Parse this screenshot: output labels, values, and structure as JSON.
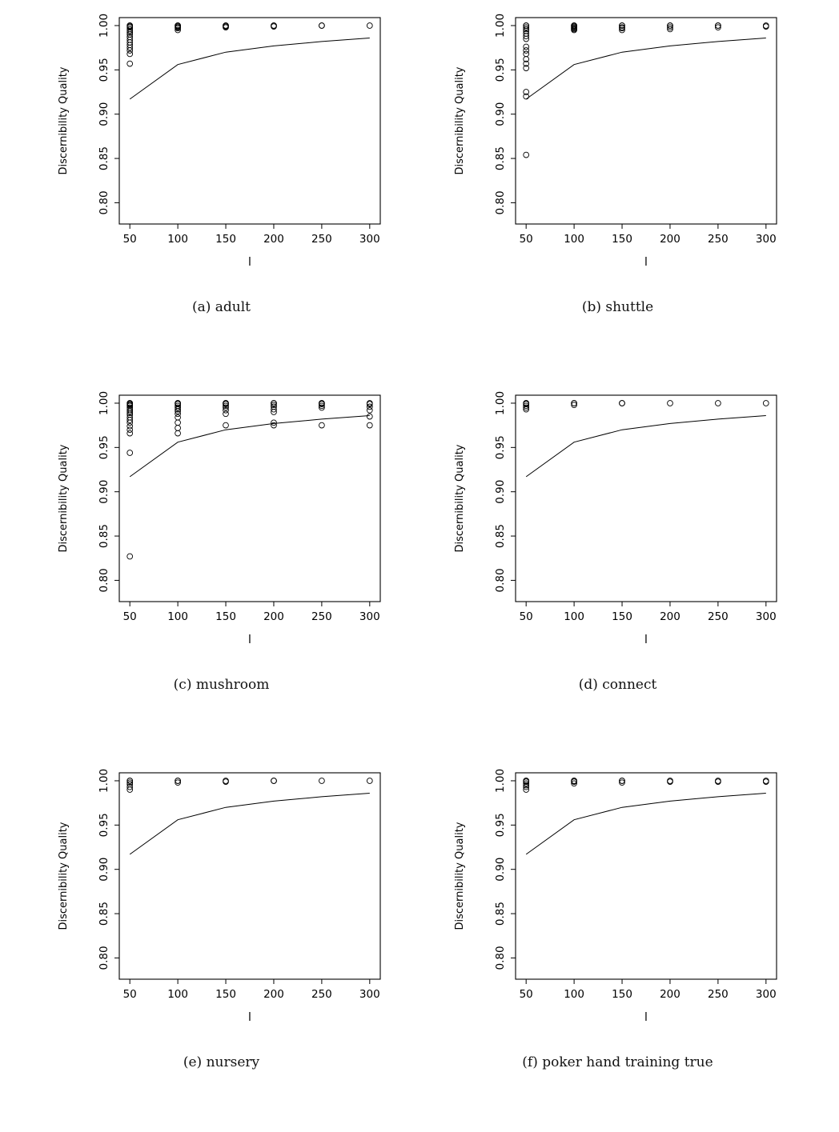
{
  "page": {
    "background": "#ffffff",
    "ink": "#000000"
  },
  "chart_data": [
    {
      "id": "a",
      "type": "scatter",
      "caption": "(a) adult",
      "xlabel": "l",
      "ylabel": "Discernibility Quality",
      "xticks": [
        50,
        100,
        150,
        200,
        250,
        300
      ],
      "ytick_labels": [
        "0.80",
        "0.85",
        "0.90",
        "0.95",
        "1.00"
      ],
      "xlim": [
        39,
        311
      ],
      "ylim": [
        0.776,
        1.009
      ],
      "line": {
        "x": [
          50,
          100,
          150,
          200,
          250,
          300
        ],
        "y": [
          0.917,
          0.956,
          0.97,
          0.977,
          0.982,
          0.986
        ]
      },
      "points": [
        {
          "x": 50,
          "y": [
            0.957,
            0.968,
            0.972,
            0.975,
            0.978,
            0.981,
            0.984,
            0.987,
            0.99,
            0.992,
            0.994,
            0.996,
            0.998,
            0.999,
            1.0,
            1.0
          ]
        },
        {
          "x": 100,
          "y": [
            0.995,
            0.997,
            0.998,
            0.999,
            1.0,
            1.0
          ]
        },
        {
          "x": 150,
          "y": [
            0.998,
            0.999,
            1.0,
            1.0
          ]
        },
        {
          "x": 200,
          "y": [
            0.999,
            1.0,
            1.0
          ]
        },
        {
          "x": 250,
          "y": [
            1.0,
            1.0
          ]
        },
        {
          "x": 300,
          "y": [
            1.0
          ]
        }
      ]
    },
    {
      "id": "b",
      "type": "scatter",
      "caption": "(b) shuttle",
      "xlabel": "l",
      "ylabel": "Discernibility Quality",
      "xticks": [
        50,
        100,
        150,
        200,
        250,
        300
      ],
      "ytick_labels": [
        "0.80",
        "0.85",
        "0.90",
        "0.95",
        "1.00"
      ],
      "xlim": [
        39,
        311
      ],
      "ylim": [
        0.776,
        1.009
      ],
      "line": {
        "x": [
          50,
          100,
          150,
          200,
          250,
          300
        ],
        "y": [
          0.917,
          0.956,
          0.97,
          0.977,
          0.982,
          0.986
        ]
      },
      "points": [
        {
          "x": 50,
          "y": [
            0.854,
            0.92,
            0.925,
            0.952,
            0.957,
            0.962,
            0.968,
            0.972,
            0.976,
            0.985,
            0.988,
            0.991,
            0.994,
            0.996,
            0.998,
            1.0,
            1.0
          ]
        },
        {
          "x": 100,
          "y": [
            0.995,
            0.996,
            0.997,
            0.998,
            0.999,
            1.0,
            1.0
          ]
        },
        {
          "x": 150,
          "y": [
            0.995,
            0.997,
            0.998,
            1.0,
            1.0
          ]
        },
        {
          "x": 200,
          "y": [
            0.996,
            0.998,
            1.0,
            1.0
          ]
        },
        {
          "x": 250,
          "y": [
            0.998,
            1.0,
            1.0
          ]
        },
        {
          "x": 300,
          "y": [
            0.999,
            1.0
          ]
        }
      ]
    },
    {
      "id": "c",
      "type": "scatter",
      "caption": "(c) mushroom",
      "xlabel": "l",
      "ylabel": "Discernibility Quality",
      "xticks": [
        50,
        100,
        150,
        200,
        250,
        300
      ],
      "ytick_labels": [
        "0.80",
        "0.85",
        "0.90",
        "0.95",
        "1.00"
      ],
      "xlim": [
        39,
        311
      ],
      "ylim": [
        0.776,
        1.009
      ],
      "line": {
        "x": [
          50,
          100,
          150,
          200,
          250,
          300
        ],
        "y": [
          0.917,
          0.956,
          0.97,
          0.977,
          0.982,
          0.986
        ]
      },
      "points": [
        {
          "x": 50,
          "y": [
            0.827,
            0.944,
            0.966,
            0.97,
            0.974,
            0.978,
            0.981,
            0.984,
            0.987,
            0.989,
            0.991,
            0.993,
            0.995,
            0.997,
            0.998,
            0.999,
            1.0,
            1.0
          ]
        },
        {
          "x": 100,
          "y": [
            0.966,
            0.972,
            0.978,
            0.984,
            0.988,
            0.991,
            0.993,
            0.995,
            0.997,
            0.999,
            1.0,
            1.0
          ]
        },
        {
          "x": 150,
          "y": [
            0.975,
            0.988,
            0.992,
            0.995,
            0.997,
            0.999,
            1.0,
            1.0
          ]
        },
        {
          "x": 200,
          "y": [
            0.975,
            0.978,
            0.99,
            0.993,
            0.996,
            0.998,
            1.0,
            1.0
          ]
        },
        {
          "x": 250,
          "y": [
            0.975,
            0.995,
            0.997,
            0.999,
            1.0,
            1.0
          ]
        },
        {
          "x": 300,
          "y": [
            0.975,
            0.985,
            0.992,
            0.996,
            0.999,
            1.0
          ]
        }
      ]
    },
    {
      "id": "d",
      "type": "scatter",
      "caption": "(d) connect",
      "xlabel": "l",
      "ylabel": "Discernibility Quality",
      "xticks": [
        50,
        100,
        150,
        200,
        250,
        300
      ],
      "ytick_labels": [
        "0.80",
        "0.85",
        "0.90",
        "0.95",
        "1.00"
      ],
      "xlim": [
        39,
        311
      ],
      "ylim": [
        0.776,
        1.009
      ],
      "line": {
        "x": [
          50,
          100,
          150,
          200,
          250,
          300
        ],
        "y": [
          0.917,
          0.956,
          0.97,
          0.977,
          0.982,
          0.986
        ]
      },
      "points": [
        {
          "x": 50,
          "y": [
            0.993,
            0.995,
            0.997,
            0.999,
            1.0,
            1.0
          ]
        },
        {
          "x": 100,
          "y": [
            0.998,
            1.0,
            1.0
          ]
        },
        {
          "x": 150,
          "y": [
            1.0,
            1.0
          ]
        },
        {
          "x": 200,
          "y": [
            1.0
          ]
        },
        {
          "x": 250,
          "y": [
            1.0
          ]
        },
        {
          "x": 300,
          "y": [
            1.0
          ]
        }
      ]
    },
    {
      "id": "e",
      "type": "scatter",
      "caption": "(e) nursery",
      "xlabel": "l",
      "ylabel": "Discernibility Quality",
      "xticks": [
        50,
        100,
        150,
        200,
        250,
        300
      ],
      "ytick_labels": [
        "0.80",
        "0.85",
        "0.90",
        "0.95",
        "1.00"
      ],
      "xlim": [
        39,
        311
      ],
      "ylim": [
        0.776,
        1.009
      ],
      "line": {
        "x": [
          50,
          100,
          150,
          200,
          250,
          300
        ],
        "y": [
          0.917,
          0.956,
          0.97,
          0.977,
          0.982,
          0.986
        ]
      },
      "points": [
        {
          "x": 50,
          "y": [
            0.99,
            0.993,
            0.996,
            0.998,
            1.0,
            1.0
          ]
        },
        {
          "x": 100,
          "y": [
            0.998,
            1.0,
            1.0
          ]
        },
        {
          "x": 150,
          "y": [
            0.999,
            1.0
          ]
        },
        {
          "x": 200,
          "y": [
            1.0,
            1.0
          ]
        },
        {
          "x": 250,
          "y": [
            1.0
          ]
        },
        {
          "x": 300,
          "y": [
            1.0
          ]
        }
      ]
    },
    {
      "id": "f",
      "type": "scatter",
      "caption": "(f) poker hand training true",
      "xlabel": "l",
      "ylabel": "Discernibility Quality",
      "xticks": [
        50,
        100,
        150,
        200,
        250,
        300
      ],
      "ytick_labels": [
        "0.80",
        "0.85",
        "0.90",
        "0.95",
        "1.00"
      ],
      "xlim": [
        39,
        311
      ],
      "ylim": [
        0.776,
        1.009
      ],
      "line": {
        "x": [
          50,
          100,
          150,
          200,
          250,
          300
        ],
        "y": [
          0.917,
          0.956,
          0.97,
          0.977,
          0.982,
          0.986
        ]
      },
      "points": [
        {
          "x": 50,
          "y": [
            0.99,
            0.993,
            0.995,
            0.997,
            0.999,
            1.0,
            1.0
          ]
        },
        {
          "x": 100,
          "y": [
            0.997,
            0.999,
            1.0,
            1.0
          ]
        },
        {
          "x": 150,
          "y": [
            0.998,
            1.0,
            1.0
          ]
        },
        {
          "x": 200,
          "y": [
            0.999,
            1.0
          ]
        },
        {
          "x": 250,
          "y": [
            0.999,
            1.0
          ]
        },
        {
          "x": 300,
          "y": [
            0.999,
            1.0
          ]
        }
      ]
    }
  ]
}
